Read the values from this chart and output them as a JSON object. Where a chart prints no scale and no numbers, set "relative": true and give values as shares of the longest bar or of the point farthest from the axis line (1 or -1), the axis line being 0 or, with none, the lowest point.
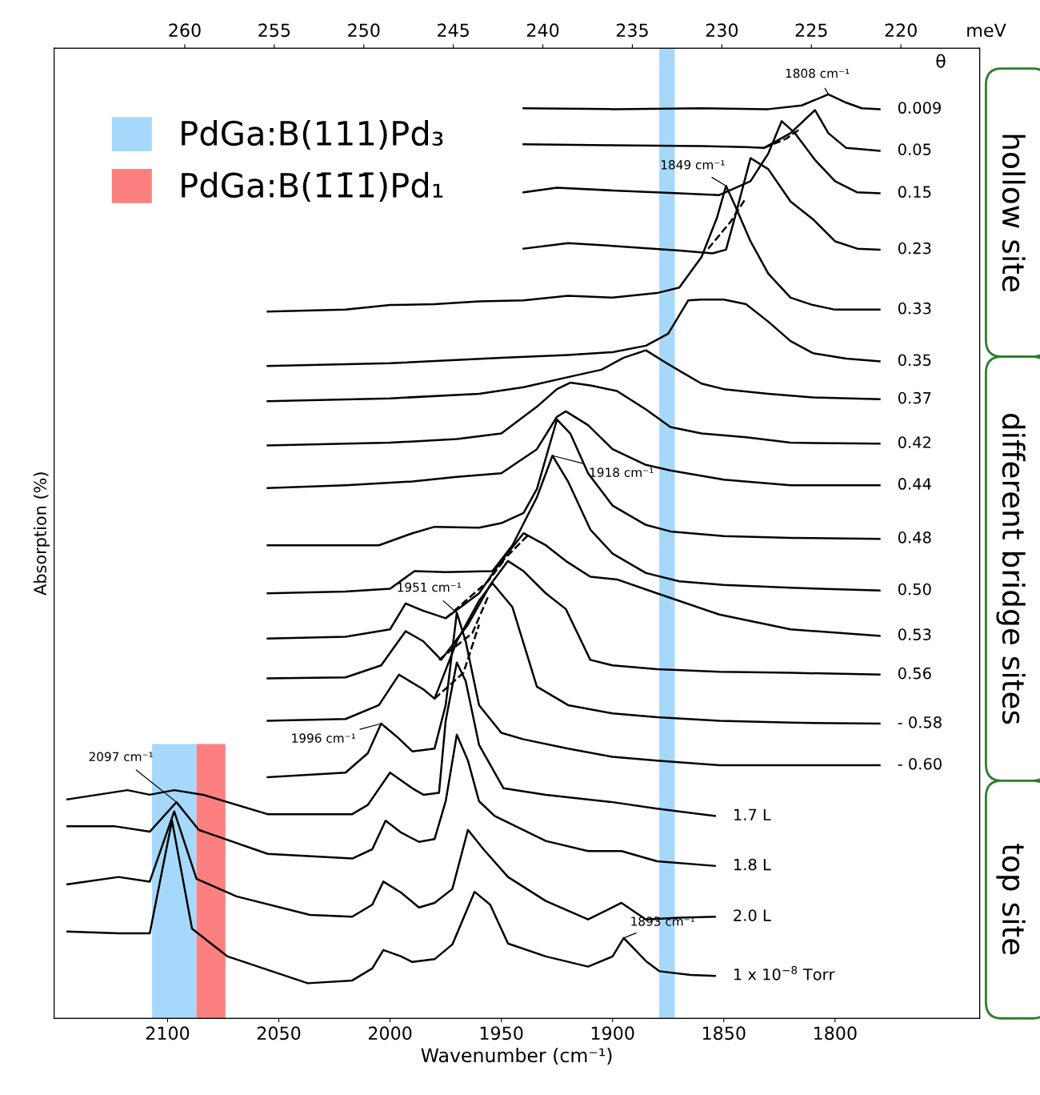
{
  "chart_data": {
    "type": "line",
    "relative": true,
    "xlabel": "Wavenumber (cm⁻¹)",
    "ylabel": "Absorption (%)",
    "x2label": "meV",
    "xlim": [
      2151,
      1735
    ],
    "xticks": [
      2100,
      2050,
      2000,
      1950,
      1900,
      1850,
      1800
    ],
    "x2lim": [
      267.3,
      215.6
    ],
    "x2ticks": [
      260,
      255,
      250,
      245,
      240,
      235,
      230,
      225,
      220
    ],
    "grid": false,
    "legend": "top left",
    "line_style": "solid",
    "marker": "none",
    "series": [
      {
        "name": "0.009",
        "color": "#000000",
        "x": [
          1940,
          1900,
          1860,
          1830,
          1815,
          1803,
          1795,
          1788,
          1780
        ],
        "values": [
          0.985,
          0.984,
          0.985,
          0.984,
          0.988,
          1.0,
          0.991,
          0.985,
          0.984
        ]
      },
      {
        "name": "0.05",
        "color": "#000000",
        "x": [
          1940,
          1900,
          1860,
          1840,
          1832,
          1820,
          1809,
          1803,
          1795,
          1780
        ],
        "values": [
          0.946,
          0.945,
          0.944,
          0.943,
          0.942,
          0.958,
          0.983,
          0.958,
          0.942,
          0.939
        ]
      },
      {
        "name": "0.15",
        "color": "#000000",
        "x": [
          1940,
          1925,
          1900,
          1870,
          1852,
          1838,
          1830,
          1824,
          1818,
          1809,
          1800,
          1790,
          1780
        ],
        "values": [
          0.894,
          0.899,
          0.896,
          0.893,
          0.891,
          0.906,
          0.936,
          0.971,
          0.958,
          0.929,
          0.906,
          0.894,
          0.893
        ]
      },
      {
        "name": "0.23",
        "color": "#000000",
        "x": [
          1940,
          1920,
          1900,
          1870,
          1855,
          1849,
          1845,
          1838,
          1830,
          1820,
          1810,
          1800,
          1790,
          1780
        ],
        "values": [
          0.833,
          0.839,
          0.836,
          0.831,
          0.828,
          0.832,
          0.867,
          0.931,
          0.919,
          0.884,
          0.865,
          0.841,
          0.833,
          0.832
        ]
      },
      {
        "name": "0.33",
        "color": "#000000",
        "x": [
          2055,
          2020,
          2000,
          1980,
          1960,
          1940,
          1920,
          1900,
          1880,
          1870,
          1860,
          1853,
          1849,
          1845,
          1838,
          1830,
          1820,
          1810,
          1800,
          1780
        ],
        "values": [
          0.765,
          0.767,
          0.772,
          0.773,
          0.776,
          0.777,
          0.782,
          0.78,
          0.785,
          0.791,
          0.824,
          0.867,
          0.901,
          0.88,
          0.841,
          0.806,
          0.78,
          0.772,
          0.767,
          0.767
        ]
      },
      {
        "name": "0.35",
        "color": "#000000",
        "x": [
          2055,
          2000,
          1950,
          1920,
          1900,
          1885,
          1875,
          1866,
          1860,
          1850,
          1840,
          1830,
          1820,
          1810,
          1795,
          1780
        ],
        "values": [
          0.706,
          0.709,
          0.715,
          0.718,
          0.721,
          0.728,
          0.741,
          0.777,
          0.778,
          0.778,
          0.773,
          0.754,
          0.733,
          0.72,
          0.714,
          0.711
        ]
      },
      {
        "name": "0.37",
        "color": "#000000",
        "x": [
          2055,
          2000,
          1960,
          1940,
          1920,
          1905,
          1895,
          1885,
          1877,
          1870,
          1860,
          1850,
          1830,
          1810,
          1780
        ],
        "values": [
          0.668,
          0.671,
          0.676,
          0.683,
          0.694,
          0.702,
          0.715,
          0.723,
          0.711,
          0.701,
          0.687,
          0.681,
          0.676,
          0.672,
          0.67
        ]
      },
      {
        "name": "0.42",
        "color": "#000000",
        "x": [
          2055,
          2000,
          1970,
          1950,
          1934,
          1925,
          1919,
          1910,
          1898,
          1885,
          1874,
          1860,
          1840,
          1820,
          1780
        ],
        "values": [
          0.62,
          0.623,
          0.627,
          0.633,
          0.662,
          0.681,
          0.688,
          0.685,
          0.679,
          0.659,
          0.64,
          0.633,
          0.629,
          0.623,
          0.622
        ]
      },
      {
        "name": "0.44",
        "color": "#000000",
        "x": [
          2055,
          2020,
          1990,
          1970,
          1950,
          1934,
          1925,
          1921,
          1911,
          1900,
          1885,
          1874,
          1850,
          1820,
          1780
        ],
        "values": [
          0.574,
          0.577,
          0.581,
          0.586,
          0.59,
          0.616,
          0.651,
          0.657,
          0.642,
          0.616,
          0.599,
          0.593,
          0.583,
          0.577,
          0.577
        ]
      },
      {
        "name": "0.48",
        "color": "#000000",
        "x": [
          2055,
          2025,
          2005,
          1990,
          1980,
          1960,
          1950,
          1940,
          1934,
          1925,
          1919,
          1911,
          1900,
          1885,
          1874,
          1850,
          1820,
          1780
        ],
        "values": [
          0.512,
          0.512,
          0.512,
          0.525,
          0.532,
          0.531,
          0.536,
          0.547,
          0.573,
          0.648,
          0.633,
          0.59,
          0.555,
          0.534,
          0.527,
          0.522,
          0.52,
          0.519
        ]
      },
      {
        "name": "0.50",
        "color": "#000000",
        "x": [
          2055,
          2020,
          2000,
          1989,
          1975,
          1954,
          1945,
          1934,
          1927,
          1920,
          1910,
          1900,
          1885,
          1870,
          1850,
          1820,
          1780
        ],
        "values": [
          0.46,
          0.462,
          0.465,
          0.484,
          0.483,
          0.484,
          0.512,
          0.564,
          0.609,
          0.581,
          0.529,
          0.503,
          0.482,
          0.473,
          0.469,
          0.466,
          0.463
        ]
      },
      {
        "name": "0.53",
        "color": "#000000",
        "x": [
          2055,
          2020,
          2000,
          1993,
          1985,
          1975,
          1960,
          1950,
          1940,
          1930,
          1921,
          1910,
          1898,
          1880,
          1852,
          1820,
          1780
        ],
        "values": [
          0.411,
          0.413,
          0.421,
          0.449,
          0.441,
          0.433,
          0.46,
          0.495,
          0.525,
          0.512,
          0.495,
          0.478,
          0.475,
          0.46,
          0.437,
          0.421,
          0.414
        ]
      },
      {
        "name": "0.56",
        "color": "#000000",
        "x": [
          2055,
          2020,
          2004,
          1993,
          1985,
          1977,
          1965,
          1955,
          1947,
          1940,
          1930,
          1921,
          1910,
          1900,
          1880,
          1852,
          1820,
          1780
        ],
        "values": [
          0.368,
          0.369,
          0.382,
          0.419,
          0.408,
          0.388,
          0.426,
          0.469,
          0.495,
          0.484,
          0.46,
          0.443,
          0.388,
          0.382,
          0.378,
          0.375,
          0.374,
          0.372
        ]
      },
      {
        "name": "- 0.58",
        "color": "#000000",
        "x": [
          2055,
          2020,
          2005,
          1996,
          1985,
          1980,
          1970,
          1960,
          1954,
          1945,
          1934,
          1920,
          1900,
          1880,
          1852,
          1820,
          1780
        ],
        "values": [
          0.322,
          0.324,
          0.339,
          0.372,
          0.356,
          0.346,
          0.408,
          0.452,
          0.471,
          0.445,
          0.359,
          0.339,
          0.33,
          0.326,
          0.322,
          0.32,
          0.319
        ]
      },
      {
        "name": "- 0.60",
        "color": "#000000",
        "x": [
          2055,
          2020,
          2010,
          2004,
          1997,
          1990,
          1980,
          1975,
          1970,
          1966,
          1960,
          1950,
          1940,
          1920,
          1900,
          1880,
          1852,
          1820,
          1780
        ],
        "values": [
          0.261,
          0.266,
          0.287,
          0.319,
          0.305,
          0.289,
          0.292,
          0.339,
          0.439,
          0.408,
          0.339,
          0.309,
          0.302,
          0.292,
          0.283,
          0.279,
          0.274,
          0.274,
          0.274
        ]
      },
      {
        "name": "1.7 L",
        "color": "#000000",
        "x": [
          2145,
          2118,
          2108,
          2097,
          2084,
          2055,
          2017,
          2010,
          2000,
          1990,
          1985,
          1978,
          1975,
          1970,
          1966,
          1960,
          1949,
          1930,
          1900,
          1880,
          1854
        ],
        "values": [
          0.237,
          0.247,
          0.242,
          0.247,
          0.242,
          0.221,
          0.221,
          0.231,
          0.266,
          0.249,
          0.242,
          0.244,
          0.322,
          0.385,
          0.365,
          0.296,
          0.249,
          0.242,
          0.234,
          0.227,
          0.219
        ]
      },
      {
        "name": "1.8 L",
        "color": "#000000",
        "x": [
          2145,
          2124,
          2108,
          2096,
          2086,
          2055,
          2017,
          2008,
          2002,
          1995,
          1987,
          1980,
          1975,
          1970,
          1965,
          1960,
          1953,
          1930,
          1911,
          1896,
          1880,
          1854
        ],
        "values": [
          0.208,
          0.208,
          0.202,
          0.234,
          0.204,
          0.178,
          0.173,
          0.183,
          0.214,
          0.201,
          0.191,
          0.194,
          0.235,
          0.307,
          0.279,
          0.235,
          0.219,
          0.192,
          0.181,
          0.181,
          0.17,
          0.165
        ]
      },
      {
        "name": "2.0 L",
        "color": "#000000",
        "x": [
          2145,
          2122,
          2108,
          2097,
          2087,
          2069,
          2036,
          2017,
          2008,
          2003,
          1995,
          1987,
          1980,
          1972,
          1965,
          1958,
          1947,
          1930,
          1911,
          1896,
          1885,
          1870,
          1854
        ],
        "values": [
          0.145,
          0.153,
          0.148,
          0.224,
          0.151,
          0.132,
          0.112,
          0.11,
          0.123,
          0.148,
          0.136,
          0.12,
          0.125,
          0.14,
          0.204,
          0.183,
          0.153,
          0.127,
          0.107,
          0.125,
          0.107,
          0.109,
          0.11
        ]
      },
      {
        "name": "1 x 10$^{−8}$ Torr",
        "color": "#000000",
        "x": [
          2145,
          2122,
          2108,
          2098,
          2089,
          2073,
          2037,
          2017,
          2008,
          2003,
          1995,
          1990,
          1980,
          1972,
          1962,
          1955,
          1947,
          1930,
          1911,
          1900,
          1895,
          1885,
          1879,
          1865,
          1854
        ],
        "values": [
          0.094,
          0.092,
          0.092,
          0.214,
          0.097,
          0.067,
          0.038,
          0.041,
          0.054,
          0.074,
          0.067,
          0.061,
          0.064,
          0.08,
          0.137,
          0.123,
          0.081,
          0.067,
          0.056,
          0.067,
          0.087,
          0.062,
          0.051,
          0.047,
          0.046
        ]
      },
      {
        "color": "#000000",
        "line_style": "dashed",
        "x": [
          1832,
          1822,
          1816
        ],
        "values": [
          0.942,
          0.952,
          0.962
        ]
      },
      {
        "color": "#000000",
        "line_style": "dashed",
        "x": [
          1857,
          1847,
          1840
        ],
        "values": [
          0.833,
          0.862,
          0.888
        ]
      },
      {
        "color": "#000000",
        "line_style": "dashed",
        "x": [
          1954,
          1938
        ],
        "values": [
          0.484,
          0.523
        ]
      },
      {
        "color": "#000000",
        "line_style": "dashed",
        "x": [
          1975,
          1956,
          1949
        ],
        "values": [
          0.433,
          0.473,
          0.495
        ]
      },
      {
        "color": "#000000",
        "line_style": "dashed",
        "x": [
          1978,
          1963,
          1956
        ],
        "values": [
          0.388,
          0.417,
          0.456
        ]
      },
      {
        "color": "#000000",
        "line_style": "dashed",
        "x": [
          1980,
          1967,
          1960
        ],
        "values": [
          0.346,
          0.374,
          0.426
        ]
      }
    ],
    "bands": [
      {
        "axis": "x",
        "from": 2107,
        "to": 2087,
        "label": "PdGa:B(111)Pd₃",
        "color": "#a6d8fb"
      },
      {
        "axis": "x",
        "from": 2087,
        "to": 2074,
        "label": "PdGa:B(1̄1̄1̄)Pd₁",
        "color": "#fc8080"
      },
      {
        "axis": "x",
        "from": 1879,
        "to": 1872,
        "color": "#a6d8fb"
      }
    ],
    "annotations": [
      {
        "text": "1808 cm⁻¹",
        "x": 1803,
        "y": 1.0
      },
      {
        "text": "1849 cm⁻¹",
        "x": 1849,
        "y": 0.901
      },
      {
        "text": "1918 cm⁻¹",
        "x": 1927,
        "y": 0.609
      },
      {
        "text": "1951 cm⁻¹",
        "x": 1970,
        "y": 0.439
      },
      {
        "text": "1996 cm⁻¹",
        "x": 2004,
        "y": 0.319
      },
      {
        "text": "2097 cm⁻¹",
        "x": 2096,
        "y": 0.234
      },
      {
        "text": "1893 cm⁻¹",
        "x": 1895,
        "y": 0.087
      },
      "θ",
      "hollow site",
      "different bridge sites",
      "top site"
    ]
  }
}
